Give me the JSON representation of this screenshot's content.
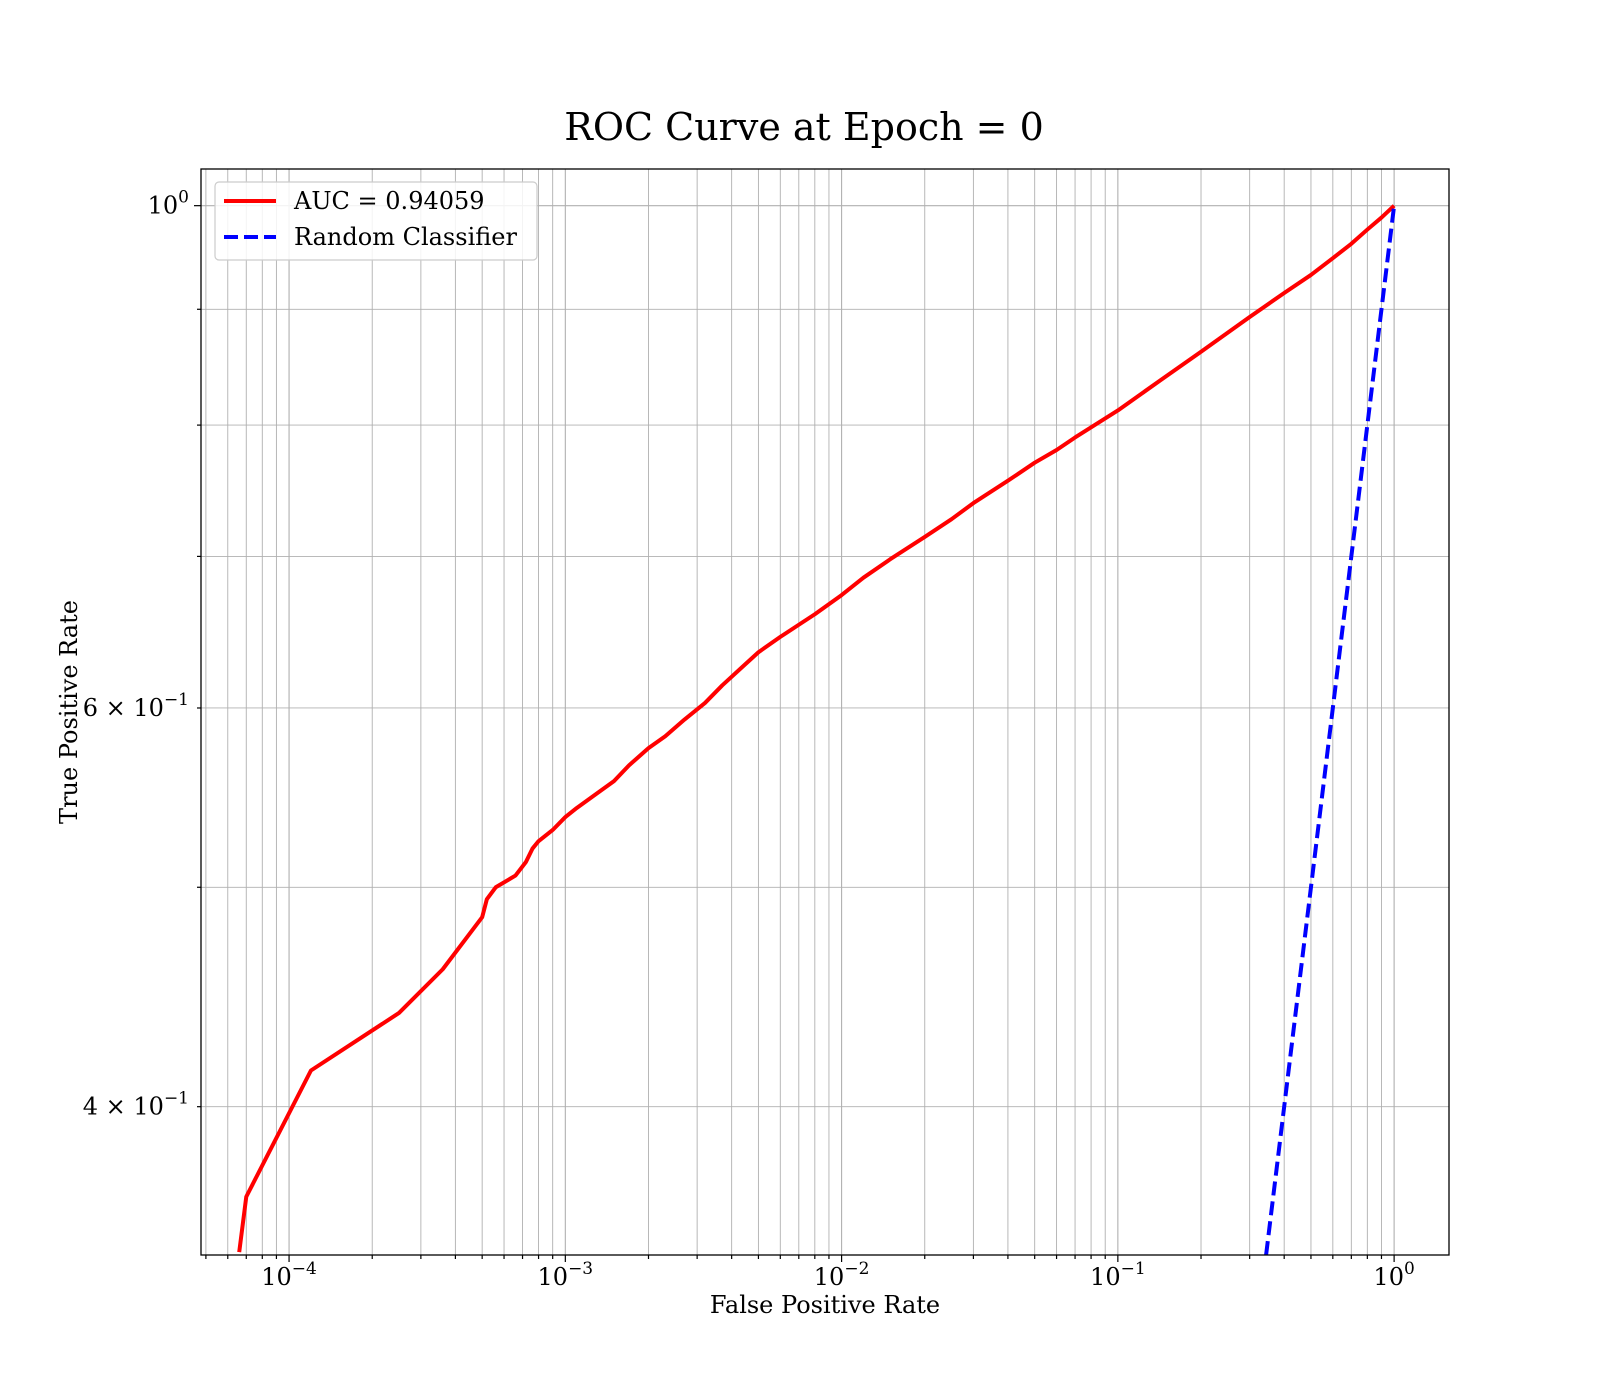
{
  "chart_data": {
    "type": "line",
    "title": "ROC Curve at Epoch = 0",
    "xlabel": "False Positive Rate",
    "ylabel": "True Positive Rate",
    "xscale": "log",
    "yscale": "log",
    "xlim": [
      4.8e-05,
      1.58
    ],
    "ylim": [
      0.344,
      1.038
    ],
    "grid": true,
    "grid_which": "both",
    "legend_position": "upper-left",
    "xticks": [
      {
        "base": "10",
        "exp": "−4"
      },
      {
        "base": "10",
        "exp": "−3"
      },
      {
        "base": "10",
        "exp": "−2"
      },
      {
        "base": "10",
        "exp": "−1"
      },
      {
        "base": "10",
        "exp": "0"
      }
    ],
    "yticks": [
      {
        "mant": "4 × 10",
        "exp": "−1"
      },
      {
        "mant": "6 × 10",
        "exp": "−1"
      },
      {
        "mant": "10",
        "exp": "0"
      }
    ],
    "series": [
      {
        "name": "AUC = 0.94059",
        "color": "#ff0000",
        "style": "solid",
        "x": [
          6.6e-05,
          7e-05,
          0.00012,
          0.00025,
          0.00036,
          0.0005,
          0.00052,
          0.00056,
          0.00066,
          0.00072,
          0.00076,
          0.0008,
          0.0009,
          0.001,
          0.0011,
          0.0013,
          0.0015,
          0.0017,
          0.002,
          0.0023,
          0.0027,
          0.0032,
          0.0037,
          0.0044,
          0.005,
          0.006,
          0.007,
          0.008,
          0.01,
          0.012,
          0.015,
          0.02,
          0.025,
          0.03,
          0.04,
          0.05,
          0.06,
          0.07,
          0.1,
          0.15,
          0.2,
          0.3,
          0.4,
          0.5,
          0.6,
          0.7,
          0.8,
          0.9,
          1.0
        ],
        "y": [
          0.345,
          0.365,
          0.415,
          0.44,
          0.46,
          0.485,
          0.494,
          0.5,
          0.506,
          0.513,
          0.52,
          0.524,
          0.53,
          0.537,
          0.542,
          0.55,
          0.557,
          0.566,
          0.576,
          0.583,
          0.593,
          0.603,
          0.614,
          0.626,
          0.635,
          0.645,
          0.653,
          0.66,
          0.673,
          0.685,
          0.698,
          0.714,
          0.727,
          0.739,
          0.756,
          0.77,
          0.78,
          0.79,
          0.812,
          0.841,
          0.862,
          0.893,
          0.915,
          0.932,
          0.948,
          0.962,
          0.976,
          0.988,
          1.0
        ]
      },
      {
        "name": "Random Classifier",
        "color": "#0000ff",
        "style": "dashed",
        "x": [
          0.344,
          1.0
        ],
        "y": [
          0.344,
          1.0
        ]
      }
    ]
  }
}
